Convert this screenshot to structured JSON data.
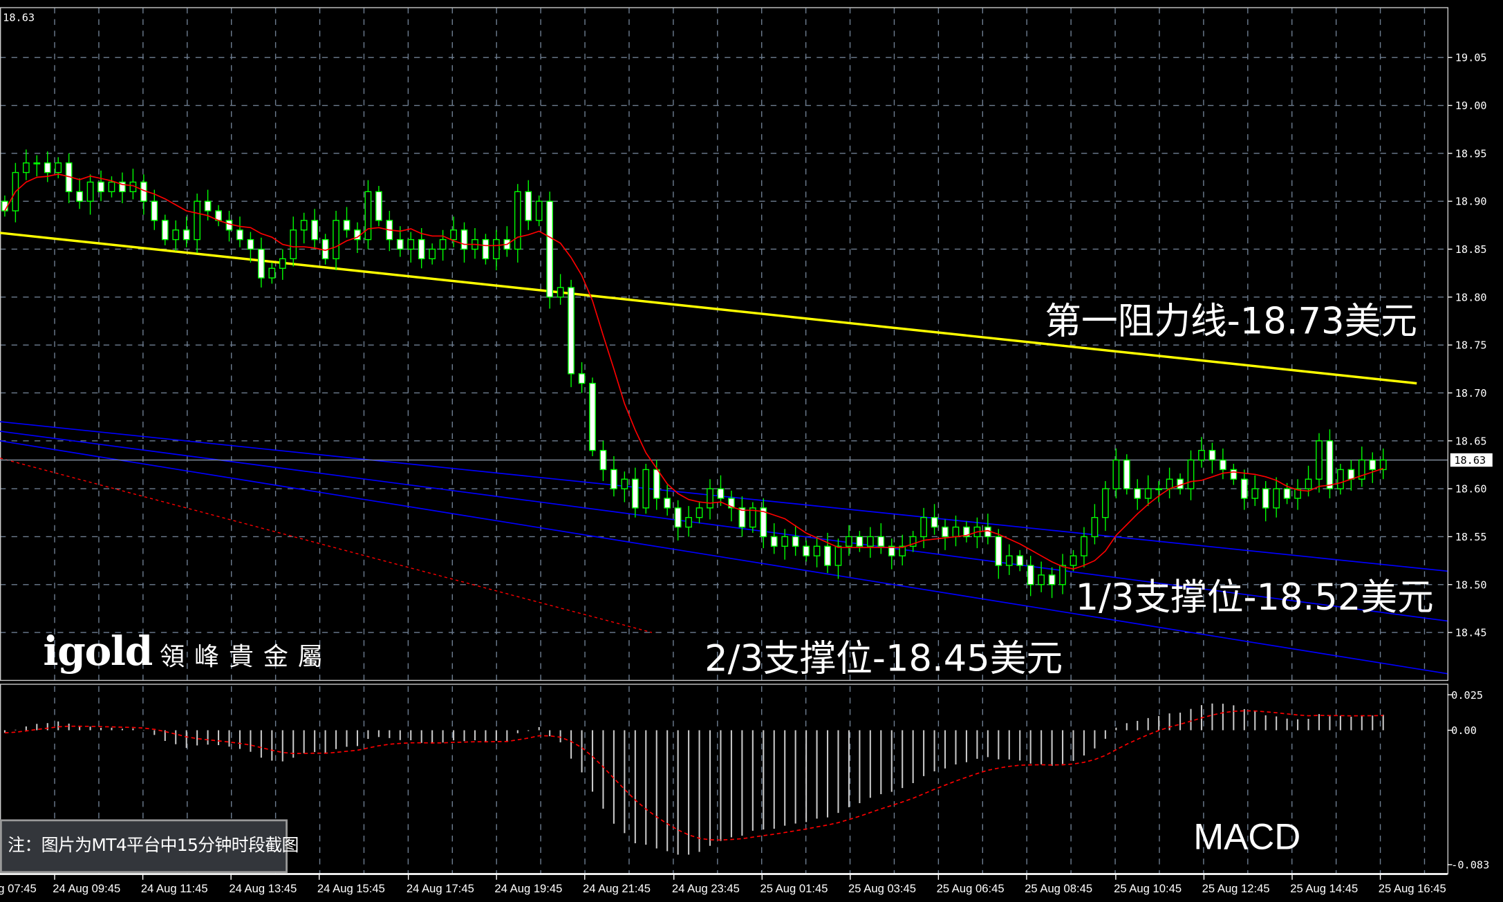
{
  "chart_data": {
    "type": "candlestick",
    "platform_note": "注：图片为MT4平台中15分钟时段截图",
    "price_axis": {
      "ticks": [
        "19.05",
        "19.00",
        "18.95",
        "18.90",
        "18.85",
        "18.80",
        "18.75",
        "18.70",
        "18.65",
        "18.60",
        "18.55",
        "18.50",
        "18.45"
      ],
      "ylim": [
        18.4,
        19.1
      ],
      "current_price": "18.63"
    },
    "macd_axis": {
      "ticks": [
        "0.025",
        "0.00",
        "-0.083"
      ],
      "ylim": [
        -0.083,
        0.025
      ]
    },
    "time_labels": [
      "g 07:45",
      "24 Aug 09:45",
      "24 Aug 11:45",
      "24 Aug 13:45",
      "24 Aug 15:45",
      "24 Aug 17:45",
      "24 Aug 19:45",
      "24 Aug 21:45",
      "24 Aug 23:45",
      "25 Aug 01:45",
      "25 Aug 03:45",
      "25 Aug 06:45",
      "25 Aug 08:45",
      "25 Aug 10:45",
      "25 Aug 12:45",
      "25 Aug 14:45",
      "25 Aug 16:45"
    ],
    "closes": [
      18.89,
      18.93,
      18.94,
      18.94,
      18.93,
      18.94,
      18.91,
      18.9,
      18.92,
      18.91,
      18.92,
      18.91,
      18.92,
      18.9,
      18.88,
      18.86,
      18.87,
      18.86,
      18.9,
      18.89,
      18.88,
      18.87,
      18.86,
      18.85,
      18.82,
      18.83,
      18.84,
      18.87,
      18.88,
      18.86,
      18.84,
      18.88,
      18.87,
      18.86,
      18.91,
      18.88,
      18.86,
      18.85,
      18.86,
      18.84,
      18.85,
      18.86,
      18.87,
      18.85,
      18.86,
      18.84,
      18.86,
      18.85,
      18.91,
      18.88,
      18.9,
      18.8,
      18.81,
      18.72,
      18.71,
      18.64,
      18.62,
      18.6,
      18.61,
      18.58,
      18.62,
      18.59,
      18.58,
      18.56,
      18.57,
      18.58,
      18.6,
      18.59,
      18.58,
      18.56,
      18.58,
      18.55,
      18.54,
      18.55,
      18.54,
      18.53,
      18.54,
      18.52,
      18.54,
      18.55,
      18.54,
      18.55,
      18.54,
      18.53,
      18.54,
      18.55,
      18.57,
      18.56,
      18.55,
      18.56,
      18.55,
      18.56,
      18.55,
      18.52,
      18.53,
      18.52,
      18.5,
      18.51,
      18.5,
      18.52,
      18.53,
      18.55,
      18.57,
      18.6,
      18.63,
      18.6,
      18.59,
      18.6,
      18.6,
      18.61,
      18.6,
      18.63,
      18.64,
      18.63,
      18.62,
      18.61,
      18.59,
      18.6,
      18.58,
      18.6,
      18.59,
      18.6,
      18.61,
      18.65,
      18.6,
      18.62,
      18.61,
      18.63,
      18.62,
      18.63
    ],
    "lines": {
      "resistance": {
        "label": "第一阻力线-18.73美元",
        "from": 18.867,
        "to": 18.71,
        "color": "#ffff00"
      },
      "channel_upper": {
        "from": 18.67,
        "to": 18.514,
        "color": "#0000ff"
      },
      "support_1_3": {
        "label": "1/3支撑位-18.52美元",
        "from": 18.66,
        "to": 18.462,
        "color": "#0000ff"
      },
      "support_2_3": {
        "label": "2/3支撑位-18.45美元",
        "from": 18.65,
        "to": 18.407,
        "color": "#0000ff"
      },
      "red_dashed": {
        "from": 18.632,
        "to": 18.45,
        "color": "#ff0000"
      }
    },
    "moving_average_color": "#ff0000",
    "candle_color": "#00ff00",
    "indicator": "MACD"
  },
  "logo": {
    "en": "igold",
    "zh": "領峰貴金屬"
  }
}
